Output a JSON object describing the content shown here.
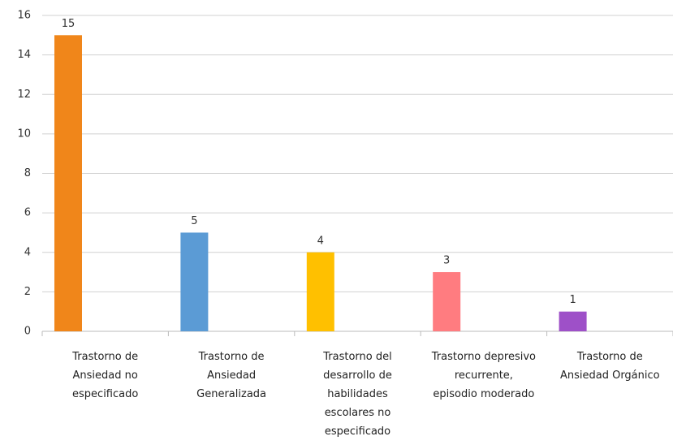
{
  "chart_data": {
    "type": "bar",
    "categories": [
      "Trastorno de Ansiedad no especificado",
      "Trastorno de Ansiedad Generalizada",
      "Trastorno del desarrollo de habilidades escolares no especificado",
      "Trastorno depresivo recurrente, episodio moderado",
      "Trastorno de Ansiedad Orgánico"
    ],
    "values": [
      15,
      5,
      4,
      3,
      1
    ],
    "colors": [
      "#f0861a",
      "#5b9bd5",
      "#ffc000",
      "#ff7c80",
      "#9e50c8"
    ],
    "ylim": [
      0,
      16
    ],
    "yticks": [
      0,
      2,
      4,
      6,
      8,
      10,
      12,
      14,
      16
    ],
    "grid": true
  }
}
